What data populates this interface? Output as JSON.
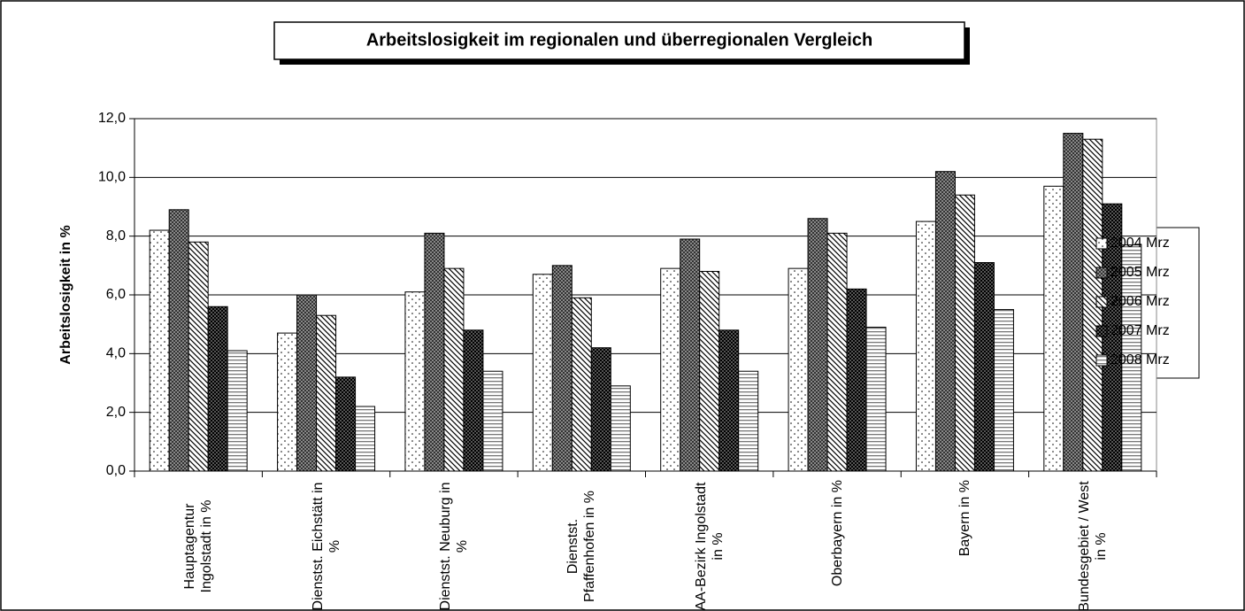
{
  "chart_data": {
    "type": "bar",
    "title": "Arbeitslosigkeit im regionalen und überregionalen Vergleich",
    "y_label": "Arbeitslosigkeit in %",
    "categories": [
      "Hauptagentur Ingolstadt in %",
      "Dienstst. Eichstätt in %",
      "Dienstst. Neuburg in %",
      "Dienstst. Pfaffenhofen in %",
      "AA-Bezirk Ingolstadt in %",
      "Oberbayern in %",
      "Bayern in %",
      "Bundesgebiet / West in %"
    ],
    "series": [
      {
        "name": "2004 Mrz",
        "color": "#ffffff",
        "values": [
          8.2,
          4.7,
          6.1,
          6.7,
          6.9,
          6.9,
          8.5,
          9.7
        ]
      },
      {
        "name": "2005 Mrz",
        "color": "#888888",
        "values": [
          8.9,
          6.0,
          8.1,
          7.0,
          7.9,
          8.6,
          10.2,
          11.5
        ]
      },
      {
        "name": "2006 Mrz",
        "color": "#ffffff",
        "values": [
          7.8,
          5.3,
          6.9,
          5.9,
          6.8,
          8.1,
          9.4,
          11.3
        ]
      },
      {
        "name": "2007 Mrz",
        "color": "#555555",
        "values": [
          5.6,
          3.2,
          4.8,
          4.2,
          4.8,
          6.2,
          7.1,
          9.1
        ]
      },
      {
        "name": "2008 Mrz",
        "color": "#ffffff",
        "values": [
          4.1,
          2.2,
          3.4,
          2.9,
          3.4,
          4.9,
          5.5,
          7.7
        ]
      }
    ],
    "ylim": [
      0,
      12
    ],
    "yticks": [
      {
        "value": 0,
        "label": "0,0"
      },
      {
        "value": 2,
        "label": "2,0"
      },
      {
        "value": 4,
        "label": "4,0"
      },
      {
        "value": 6,
        "label": "6,0"
      },
      {
        "value": 8,
        "label": "8,0"
      },
      {
        "value": 10,
        "label": "10,0"
      },
      {
        "value": 12,
        "label": "12,0"
      }
    ],
    "grid": true,
    "legend": "right"
  }
}
